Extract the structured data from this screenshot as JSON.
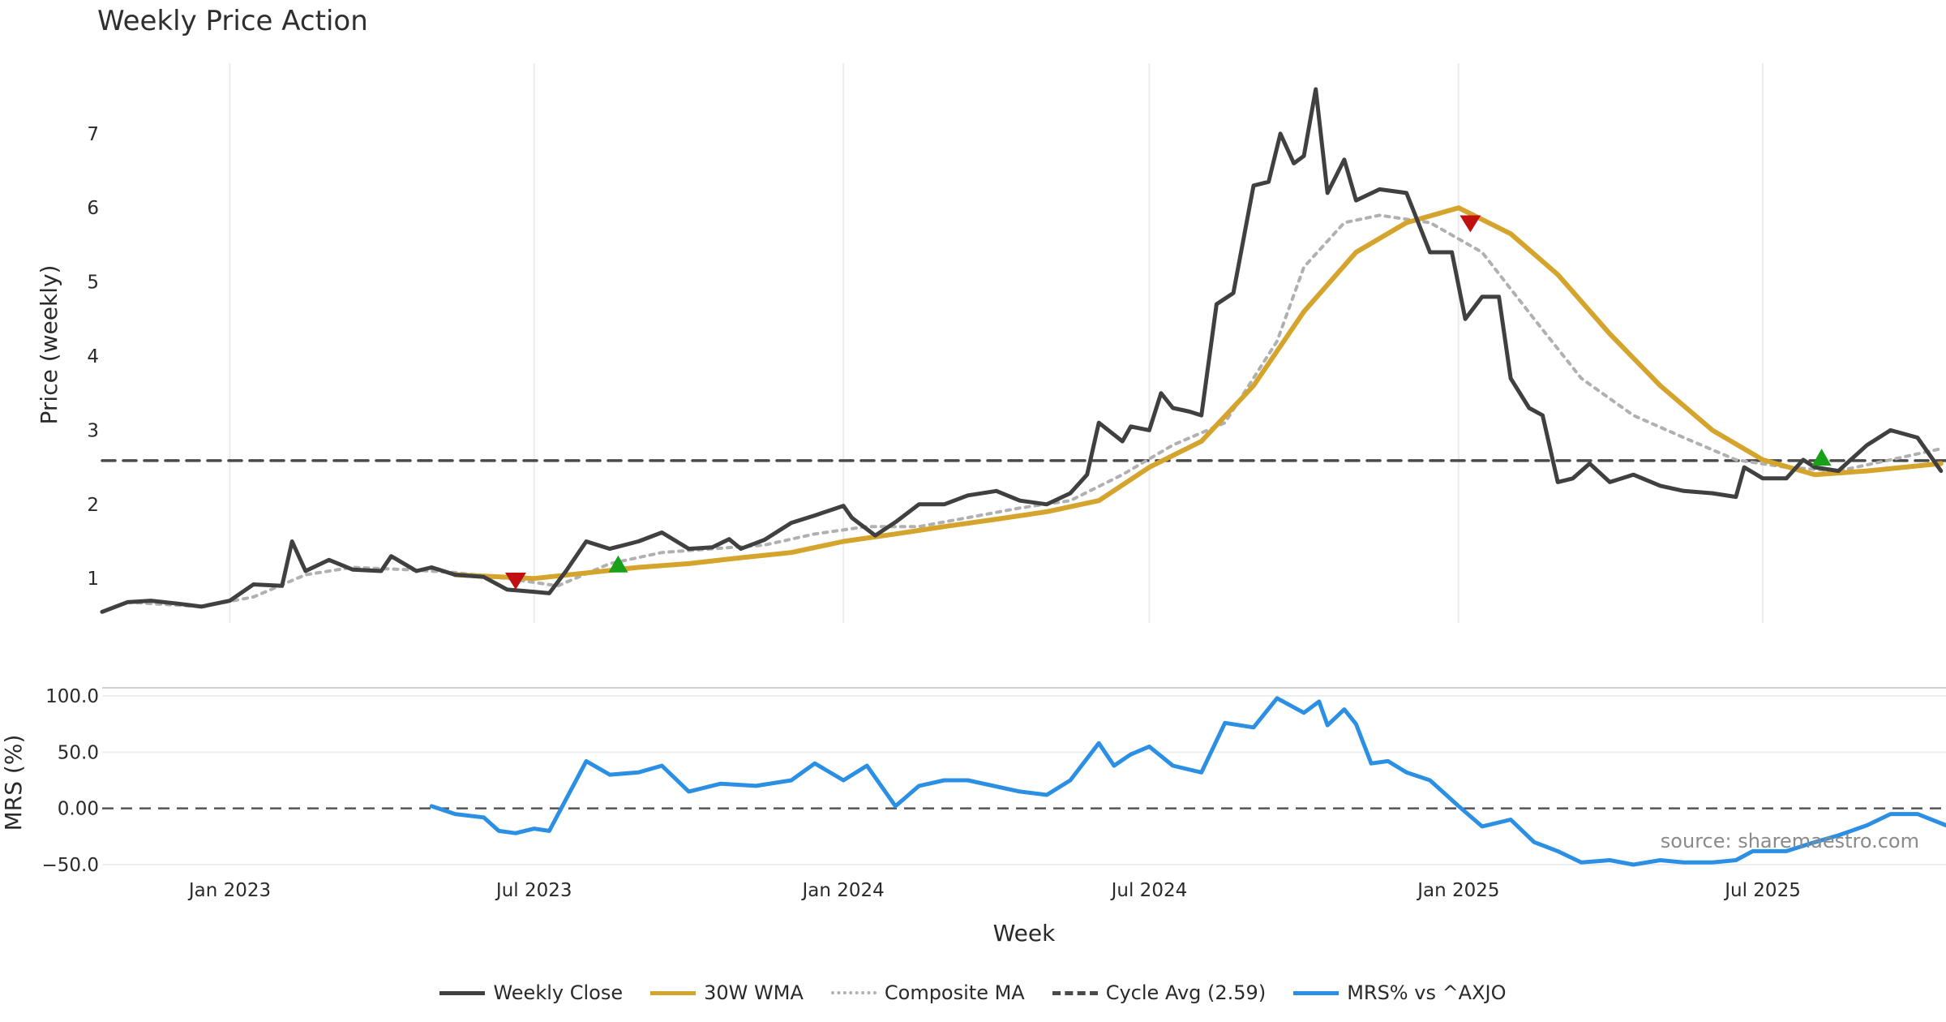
{
  "title": "Weekly Price Action",
  "source": "source: sharemaestro.com",
  "colors": {
    "close": "#404040",
    "wma": "#d4a42c",
    "composite": "#b0b0b0",
    "cycle": "#4a4a4a",
    "mrs": "#2b8fe4",
    "buy": "#18a018",
    "sell": "#c01010",
    "grid": "#ececec"
  },
  "legend": [
    {
      "label": "Weekly Close",
      "key": "close",
      "style": "solid"
    },
    {
      "label": "30W WMA",
      "key": "wma",
      "style": "solid"
    },
    {
      "label": "Composite MA",
      "key": "composite",
      "style": "dotted"
    },
    {
      "label": "Cycle Avg (2.59)",
      "key": "cycle",
      "style": "dashed"
    },
    {
      "label": "MRS% vs ^AXJO",
      "key": "mrs",
      "style": "solid"
    }
  ],
  "chart_data": [
    {
      "type": "line",
      "panel": "price",
      "ylabel": "Price (weekly)",
      "xlabel": "Week",
      "x_tick_labels": [
        "Jan 2023",
        "Jul 2023",
        "Jan 2024",
        "Jul 2024",
        "Jan 2025",
        "Jul 2025"
      ],
      "x_tick_dates": [
        "2023-01-01",
        "2023-07-01",
        "2024-01-01",
        "2024-07-01",
        "2025-01-01",
        "2025-07-01"
      ],
      "x_range": [
        "2022-10-17",
        "2025-10-18"
      ],
      "y_ticks": [
        1,
        2,
        3,
        4,
        5,
        6,
        7
      ],
      "ylim": [
        0.4,
        7.95
      ],
      "grid": "vertical",
      "cycle_avg": 2.59,
      "series": [
        {
          "name": "Weekly Close",
          "key": "close",
          "points": [
            [
              "2022-10-17",
              0.55
            ],
            [
              "2022-11-01",
              0.68
            ],
            [
              "2022-11-15",
              0.7
            ],
            [
              "2022-12-01",
              0.66
            ],
            [
              "2022-12-15",
              0.62
            ],
            [
              "2023-01-01",
              0.7
            ],
            [
              "2023-01-15",
              0.92
            ],
            [
              "2023-02-01",
              0.9
            ],
            [
              "2023-02-07",
              1.5
            ],
            [
              "2023-02-15",
              1.1
            ],
            [
              "2023-03-01",
              1.25
            ],
            [
              "2023-03-15",
              1.12
            ],
            [
              "2023-04-01",
              1.1
            ],
            [
              "2023-04-07",
              1.3
            ],
            [
              "2023-04-22",
              1.1
            ],
            [
              "2023-05-01",
              1.15
            ],
            [
              "2023-05-15",
              1.05
            ],
            [
              "2023-06-01",
              1.02
            ],
            [
              "2023-06-15",
              0.85
            ],
            [
              "2023-07-01",
              0.82
            ],
            [
              "2023-07-10",
              0.8
            ],
            [
              "2023-07-20",
              1.1
            ],
            [
              "2023-08-01",
              1.5
            ],
            [
              "2023-08-15",
              1.4
            ],
            [
              "2023-09-01",
              1.5
            ],
            [
              "2023-09-15",
              1.62
            ],
            [
              "2023-10-01",
              1.4
            ],
            [
              "2023-10-15",
              1.42
            ],
            [
              "2023-10-25",
              1.53
            ],
            [
              "2023-11-01",
              1.4
            ],
            [
              "2023-11-15",
              1.52
            ],
            [
              "2023-12-01",
              1.75
            ],
            [
              "2023-12-15",
              1.85
            ],
            [
              "2024-01-01",
              1.98
            ],
            [
              "2024-01-06",
              1.82
            ],
            [
              "2024-01-20",
              1.58
            ],
            [
              "2024-02-01",
              1.76
            ],
            [
              "2024-02-15",
              2.0
            ],
            [
              "2024-03-01",
              2.0
            ],
            [
              "2024-03-15",
              2.12
            ],
            [
              "2024-04-01",
              2.18
            ],
            [
              "2024-04-15",
              2.05
            ],
            [
              "2024-05-01",
              2.0
            ],
            [
              "2024-05-15",
              2.15
            ],
            [
              "2024-05-25",
              2.4
            ],
            [
              "2024-06-01",
              3.1
            ],
            [
              "2024-06-15",
              2.85
            ],
            [
              "2024-06-20",
              3.05
            ],
            [
              "2024-07-01",
              3.0
            ],
            [
              "2024-07-08",
              3.5
            ],
            [
              "2024-07-15",
              3.3
            ],
            [
              "2024-07-25",
              3.25
            ],
            [
              "2024-08-01",
              3.2
            ],
            [
              "2024-08-10",
              4.7
            ],
            [
              "2024-08-20",
              4.85
            ],
            [
              "2024-09-01",
              6.3
            ],
            [
              "2024-09-10",
              6.35
            ],
            [
              "2024-09-17",
              7.0
            ],
            [
              "2024-09-25",
              6.6
            ],
            [
              "2024-10-01",
              6.7
            ],
            [
              "2024-10-08",
              7.6
            ],
            [
              "2024-10-15",
              6.2
            ],
            [
              "2024-10-25",
              6.65
            ],
            [
              "2024-11-01",
              6.1
            ],
            [
              "2024-11-15",
              6.25
            ],
            [
              "2024-12-01",
              6.2
            ],
            [
              "2024-12-15",
              5.4
            ],
            [
              "2024-12-28",
              5.4
            ],
            [
              "2025-01-05",
              4.5
            ],
            [
              "2025-01-15",
              4.8
            ],
            [
              "2025-01-25",
              4.8
            ],
            [
              "2025-02-01",
              3.7
            ],
            [
              "2025-02-12",
              3.3
            ],
            [
              "2025-02-20",
              3.2
            ],
            [
              "2025-03-01",
              2.3
            ],
            [
              "2025-03-10",
              2.35
            ],
            [
              "2025-03-20",
              2.55
            ],
            [
              "2025-04-01",
              2.3
            ],
            [
              "2025-04-15",
              2.4
            ],
            [
              "2025-05-01",
              2.25
            ],
            [
              "2025-05-15",
              2.18
            ],
            [
              "2025-06-01",
              2.15
            ],
            [
              "2025-06-15",
              2.1
            ],
            [
              "2025-06-20",
              2.5
            ],
            [
              "2025-07-01",
              2.35
            ],
            [
              "2025-07-15",
              2.35
            ],
            [
              "2025-07-25",
              2.6
            ],
            [
              "2025-08-01",
              2.5
            ],
            [
              "2025-08-15",
              2.45
            ],
            [
              "2025-09-01",
              2.8
            ],
            [
              "2025-09-15",
              3.0
            ],
            [
              "2025-10-01",
              2.9
            ],
            [
              "2025-10-15",
              2.45
            ]
          ]
        },
        {
          "name": "30W WMA",
          "key": "wma",
          "points": [
            [
              "2023-05-15",
              1.05
            ],
            [
              "2023-07-01",
              1.0
            ],
            [
              "2023-09-01",
              1.15
            ],
            [
              "2023-10-01",
              1.2
            ],
            [
              "2023-11-01",
              1.28
            ],
            [
              "2023-12-01",
              1.35
            ],
            [
              "2024-01-01",
              1.5
            ],
            [
              "2024-02-01",
              1.6
            ],
            [
              "2024-03-01",
              1.7
            ],
            [
              "2024-04-01",
              1.8
            ],
            [
              "2024-05-01",
              1.9
            ],
            [
              "2024-06-01",
              2.05
            ],
            [
              "2024-07-01",
              2.5
            ],
            [
              "2024-08-01",
              2.85
            ],
            [
              "2024-09-01",
              3.6
            ],
            [
              "2024-10-01",
              4.6
            ],
            [
              "2024-11-01",
              5.4
            ],
            [
              "2024-12-01",
              5.8
            ],
            [
              "2025-01-01",
              6.0
            ],
            [
              "2025-02-01",
              5.65
            ],
            [
              "2025-03-01",
              5.1
            ],
            [
              "2025-04-01",
              4.3
            ],
            [
              "2025-05-01",
              3.6
            ],
            [
              "2025-06-01",
              3.0
            ],
            [
              "2025-07-01",
              2.6
            ],
            [
              "2025-08-01",
              2.4
            ],
            [
              "2025-09-01",
              2.45
            ],
            [
              "2025-10-15",
              2.55
            ]
          ]
        },
        {
          "name": "Composite MA",
          "key": "composite",
          "points": [
            [
              "2022-11-01",
              0.68
            ],
            [
              "2022-12-15",
              0.62
            ],
            [
              "2023-01-15",
              0.75
            ],
            [
              "2023-02-15",
              1.05
            ],
            [
              "2023-03-15",
              1.15
            ],
            [
              "2023-04-15",
              1.12
            ],
            [
              "2023-05-15",
              1.08
            ],
            [
              "2023-06-15",
              1.0
            ],
            [
              "2023-07-15",
              0.9
            ],
            [
              "2023-08-15",
              1.2
            ],
            [
              "2023-09-15",
              1.35
            ],
            [
              "2023-10-15",
              1.4
            ],
            [
              "2023-11-15",
              1.45
            ],
            [
              "2023-12-15",
              1.6
            ],
            [
              "2024-01-15",
              1.7
            ],
            [
              "2024-02-15",
              1.7
            ],
            [
              "2024-03-15",
              1.82
            ],
            [
              "2024-04-15",
              1.95
            ],
            [
              "2024-05-15",
              2.05
            ],
            [
              "2024-06-15",
              2.4
            ],
            [
              "2024-07-15",
              2.8
            ],
            [
              "2024-08-15",
              3.1
            ],
            [
              "2024-09-15",
              4.2
            ],
            [
              "2024-10-01",
              5.2
            ],
            [
              "2024-10-25",
              5.8
            ],
            [
              "2024-11-15",
              5.9
            ],
            [
              "2024-12-15",
              5.8
            ],
            [
              "2025-01-15",
              5.4
            ],
            [
              "2025-02-15",
              4.5
            ],
            [
              "2025-03-15",
              3.7
            ],
            [
              "2025-04-15",
              3.2
            ],
            [
              "2025-05-15",
              2.9
            ],
            [
              "2025-06-15",
              2.6
            ],
            [
              "2025-07-15",
              2.5
            ],
            [
              "2025-08-15",
              2.45
            ],
            [
              "2025-09-15",
              2.6
            ],
            [
              "2025-10-15",
              2.75
            ]
          ]
        },
        {
          "name": "Cycle Avg (2.59)",
          "key": "cycle",
          "points": [
            [
              "2022-10-17",
              2.59
            ],
            [
              "2025-10-18",
              2.59
            ]
          ]
        }
      ],
      "signals": [
        {
          "type": "sell",
          "date": "2023-06-20",
          "value": 0.98
        },
        {
          "type": "buy",
          "date": "2023-08-20",
          "value": 1.18
        },
        {
          "type": "sell",
          "date": "2025-01-08",
          "value": 5.8
        },
        {
          "type": "buy",
          "date": "2025-08-05",
          "value": 2.62
        }
      ]
    },
    {
      "type": "line",
      "panel": "mrs",
      "ylabel": "MRS (%)",
      "y_ticks": [
        100.0,
        50.0,
        0.0,
        -50.0
      ],
      "y_tick_labels": [
        "100.0",
        "50.0",
        "0.00",
        "−50.0"
      ],
      "ylim": [
        -50,
        100
      ],
      "zero_line": 0,
      "series": [
        {
          "name": "MRS% vs ^AXJO",
          "key": "mrs",
          "points": [
            [
              "2023-05-01",
              2
            ],
            [
              "2023-05-15",
              -5
            ],
            [
              "2023-06-01",
              -8
            ],
            [
              "2023-06-10",
              -20
            ],
            [
              "2023-06-20",
              -22
            ],
            [
              "2023-07-01",
              -18
            ],
            [
              "2023-07-10",
              -20
            ],
            [
              "2023-08-01",
              42
            ],
            [
              "2023-08-15",
              30
            ],
            [
              "2023-09-01",
              32
            ],
            [
              "2023-09-15",
              38
            ],
            [
              "2023-10-01",
              15
            ],
            [
              "2023-10-20",
              22
            ],
            [
              "2023-11-10",
              20
            ],
            [
              "2023-12-01",
              25
            ],
            [
              "2023-12-15",
              40
            ],
            [
              "2024-01-01",
              25
            ],
            [
              "2024-01-15",
              38
            ],
            [
              "2024-02-01",
              2
            ],
            [
              "2024-02-15",
              20
            ],
            [
              "2024-03-01",
              25
            ],
            [
              "2024-03-15",
              25
            ],
            [
              "2024-04-15",
              15
            ],
            [
              "2024-05-01",
              12
            ],
            [
              "2024-05-15",
              25
            ],
            [
              "2024-06-01",
              58
            ],
            [
              "2024-06-10",
              38
            ],
            [
              "2024-06-20",
              48
            ],
            [
              "2024-07-01",
              55
            ],
            [
              "2024-07-15",
              38
            ],
            [
              "2024-08-01",
              32
            ],
            [
              "2024-08-15",
              76
            ],
            [
              "2024-09-01",
              72
            ],
            [
              "2024-09-15",
              98
            ],
            [
              "2024-10-01",
              85
            ],
            [
              "2024-10-10",
              95
            ],
            [
              "2024-10-15",
              74
            ],
            [
              "2024-10-25",
              88
            ],
            [
              "2024-11-01",
              75
            ],
            [
              "2024-11-10",
              40
            ],
            [
              "2024-11-20",
              42
            ],
            [
              "2024-12-01",
              32
            ],
            [
              "2024-12-15",
              25
            ],
            [
              "2025-01-01",
              2
            ],
            [
              "2025-01-15",
              -16
            ],
            [
              "2025-02-01",
              -10
            ],
            [
              "2025-02-15",
              -30
            ],
            [
              "2025-03-01",
              -38
            ],
            [
              "2025-03-15",
              -48
            ],
            [
              "2025-04-01",
              -46
            ],
            [
              "2025-04-15",
              -50
            ],
            [
              "2025-05-01",
              -46
            ],
            [
              "2025-05-15",
              -48
            ],
            [
              "2025-06-01",
              -48
            ],
            [
              "2025-06-15",
              -46
            ],
            [
              "2025-06-25",
              -38
            ],
            [
              "2025-07-15",
              -38
            ],
            [
              "2025-08-01",
              -30
            ],
            [
              "2025-08-15",
              -24
            ],
            [
              "2025-09-01",
              -15
            ],
            [
              "2025-09-15",
              -5
            ],
            [
              "2025-10-01",
              -5
            ],
            [
              "2025-10-18",
              -15
            ]
          ]
        }
      ]
    }
  ]
}
